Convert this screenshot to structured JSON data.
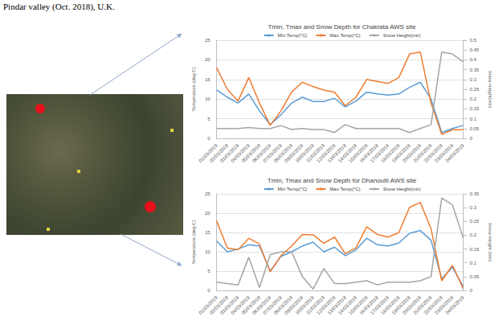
{
  "caption": "Pindar valley (Oct. 2018), U.K.",
  "chart_data": [
    {
      "type": "line",
      "title": "Tmin, Tmax and Snow Depth for Chakrata AWS site",
      "ylabel": "Temperature (deg C)",
      "y2label": "Snow Height(mtr)",
      "x": [
        "01/03/2019",
        "02/03/2019",
        "03/03/2019",
        "04/03/2019",
        "05/03/2019",
        "06/03/2019",
        "07/03/2019",
        "08/03/2019",
        "09/03/2019",
        "10/03/2019",
        "11/03/2019",
        "12/03/2019",
        "13/03/2019",
        "14/03/2019",
        "15/03/2019",
        "16/03/2019",
        "17/03/2019",
        "18/03/2019",
        "19/03/2019",
        "20/03/2019",
        "21/03/2019",
        "22/03/2019",
        "23/03/2019",
        "24/03/2019"
      ],
      "series": [
        {
          "name": "Min Temp(°C)",
          "color": "#5b9bd5",
          "values": [
            12.3,
            10.5,
            9,
            11.3,
            7,
            3.5,
            6,
            9,
            10.5,
            9.4,
            9.4,
            10.2,
            8,
            9.5,
            11.8,
            11.3,
            11,
            11.3,
            13,
            14.3,
            10,
            1.5,
            2.5,
            3.3
          ]
        },
        {
          "name": "Max Temp(°C)",
          "color": "#ed7d31",
          "values": [
            18,
            12.5,
            9.5,
            15.5,
            9,
            3.3,
            7,
            11.8,
            14.3,
            13.2,
            12.3,
            11.8,
            8.3,
            10.5,
            15,
            14.5,
            14,
            15.5,
            21.5,
            22,
            9,
            1,
            2.2,
            2.2
          ]
        },
        {
          "name": "Snow Height(mtr)",
          "color": "#a5a5a5",
          "axis": "y2",
          "values": [
            0.05,
            0.05,
            0.05,
            0.055,
            0.05,
            0.05,
            0.065,
            0.045,
            0.05,
            0.045,
            0.045,
            0.03,
            0.07,
            0.05,
            0.05,
            0.05,
            0.05,
            0.05,
            0.03,
            0.05,
            0.07,
            0.44,
            0.43,
            0.39
          ]
        }
      ],
      "ylim": [
        0,
        25
      ],
      "yticks": [
        0,
        5,
        10,
        15,
        20,
        25
      ],
      "y2lim": [
        0,
        0.5
      ],
      "y2ticks": [
        0,
        0.05,
        0.1,
        0.15,
        0.2,
        0.25,
        0.3,
        0.35,
        0.4,
        0.45,
        0.5
      ],
      "legend": "top",
      "grid": true
    },
    {
      "type": "line",
      "title": "Tmin, Tmax and Snow Depth for Dhanoulti AWS site",
      "ylabel": "Temperature (deg C)",
      "y2label": "Snow Height (mtr)",
      "x": [
        "01/03/2019",
        "02/03/2019",
        "03/03/2019",
        "04/03/2019",
        "05/03/2019",
        "06/03/2019",
        "07/03/2019",
        "08/03/2019",
        "09/03/2019",
        "10/03/2019",
        "11/03/2019",
        "12/03/2019",
        "13/03/2019",
        "14/03/2019",
        "15/03/2019",
        "16/03/2019",
        "17/03/2019",
        "18/03/2019",
        "19/03/2019",
        "20/03/2019",
        "21/03/2019",
        "22/03/2019",
        "23/03/2019",
        "24/03/2019"
      ],
      "series": [
        {
          "name": "Min Temp(°C)",
          "color": "#5b9bd5",
          "values": [
            12.8,
            10,
            10.7,
            11.8,
            11.5,
            5,
            8.8,
            10,
            11.5,
            12.5,
            10,
            11.2,
            9,
            10.5,
            13.5,
            11.8,
            11.5,
            12.3,
            14.8,
            15.5,
            13,
            3,
            6,
            1
          ]
        },
        {
          "name": "Max Temp(°C)",
          "color": "#ed7d31",
          "values": [
            18,
            11,
            10.5,
            13.5,
            12,
            4.8,
            9,
            11.5,
            14.5,
            14.4,
            12.2,
            13.8,
            9.5,
            11,
            16.5,
            14.5,
            13.8,
            15,
            21.5,
            22.8,
            16,
            2.5,
            6.5,
            0.5
          ]
        },
        {
          "name": "Snow Height(mtr)",
          "color": "#a5a5a5",
          "axis": "y2",
          "values": [
            0.03,
            0.025,
            0.02,
            0.12,
            0.01,
            0.13,
            0.14,
            0.14,
            0.05,
            0.005,
            0.08,
            0.025,
            0.025,
            0.03,
            0.035,
            0.02,
            0.03,
            0.03,
            0.03,
            0.035,
            0.05,
            0.335,
            0.31,
            0.19
          ]
        }
      ],
      "ylim": [
        0,
        25
      ],
      "yticks": [
        0,
        5,
        10,
        15,
        20,
        25
      ],
      "y2lim": [
        0,
        0.35
      ],
      "y2ticks": [
        0,
        0.05,
        0.1,
        0.15,
        0.2,
        0.25,
        0.3,
        0.35
      ],
      "legend": "top",
      "grid": true
    }
  ]
}
